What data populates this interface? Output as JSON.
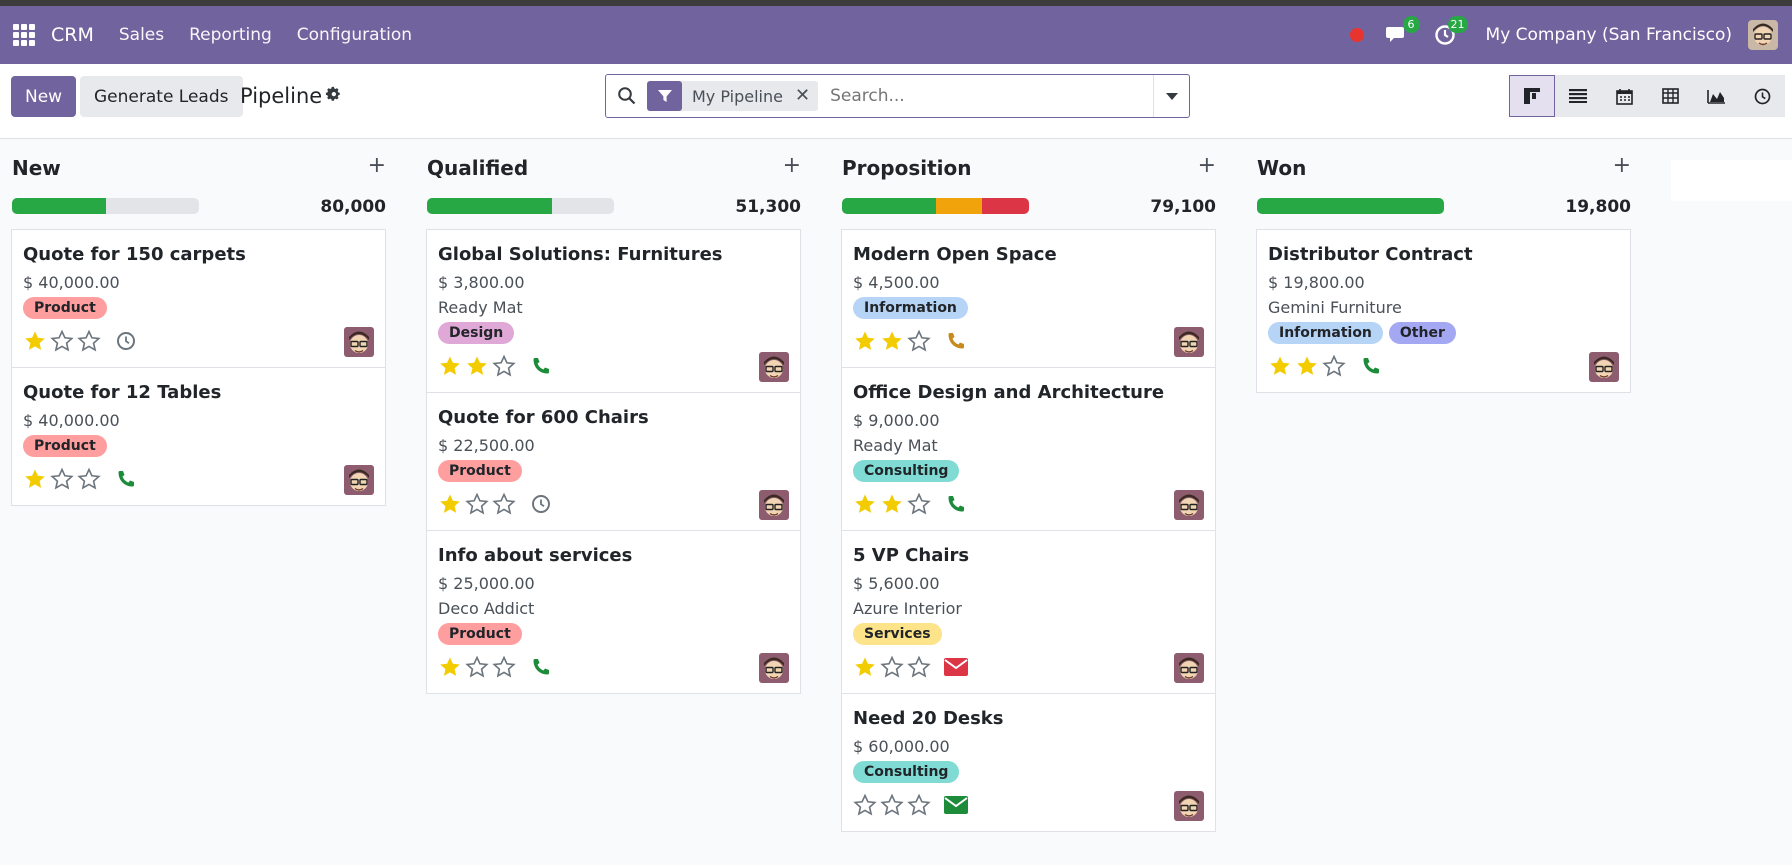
{
  "nav": {
    "brand": "CRM",
    "menu": [
      "Sales",
      "Reporting",
      "Configuration"
    ],
    "messages_count": "6",
    "activities_count": "21",
    "company": "My Company (San Francisco)"
  },
  "control": {
    "new_label": "New",
    "generate_label": "Generate Leads",
    "title": "Pipeline",
    "facet_label": "My Pipeline",
    "search_placeholder": "Search..."
  },
  "colors": {
    "brand": "#71639e",
    "green": "#28a745",
    "orange": "#f0a30a",
    "red": "#dc3545",
    "star": "#f3cc00"
  },
  "columns": [
    {
      "title": "New",
      "total": "80,000",
      "progress": [
        {
          "color": "green",
          "fraction": 0.5
        }
      ],
      "cards": [
        {
          "title": "Quote for 150 carpets",
          "amount": "$ 40,000.00",
          "partner": "",
          "tags": [
            {
              "label": "Product",
              "color": "#ff9e9e"
            }
          ],
          "stars": 1,
          "activity": "clock-icon"
        },
        {
          "title": "Quote for 12 Tables",
          "amount": "$ 40,000.00",
          "partner": "",
          "tags": [
            {
              "label": "Product",
              "color": "#ff9e9e"
            }
          ],
          "stars": 1,
          "activity": "phone-icon"
        }
      ]
    },
    {
      "title": "Qualified",
      "total": "51,300",
      "progress": [
        {
          "color": "green",
          "fraction": 0.67
        }
      ],
      "cards": [
        {
          "title": "Global Solutions: Furnitures",
          "amount": "$ 3,800.00",
          "partner": "Ready Mat",
          "tags": [
            {
              "label": "Design",
              "color": "#e0a8d6"
            }
          ],
          "stars": 2,
          "activity": "phone-icon"
        },
        {
          "title": "Quote for 600 Chairs",
          "amount": "$ 22,500.00",
          "partner": "",
          "tags": [
            {
              "label": "Product",
              "color": "#ff9e9e"
            }
          ],
          "stars": 1,
          "activity": "clock-icon"
        },
        {
          "title": "Info about services",
          "amount": "$ 25,000.00",
          "partner": "Deco Addict",
          "tags": [
            {
              "label": "Product",
              "color": "#ff9e9e"
            }
          ],
          "stars": 1,
          "activity": "phone-icon"
        }
      ]
    },
    {
      "title": "Proposition",
      "total": "79,100",
      "progress": [
        {
          "color": "green",
          "fraction": 0.5
        },
        {
          "color": "orange",
          "fraction": 0.25
        },
        {
          "color": "red",
          "fraction": 0.25
        }
      ],
      "cards": [
        {
          "title": "Modern Open Space",
          "amount": "$ 4,500.00",
          "partner": "",
          "tags": [
            {
              "label": "Information",
              "color": "#b6d4f5"
            }
          ],
          "stars": 2,
          "activity": "phone-orange-icon"
        },
        {
          "title": "Office Design and Architecture",
          "amount": "$ 9,000.00",
          "partner": "Ready Mat",
          "tags": [
            {
              "label": "Consulting",
              "color": "#7fdbd3"
            }
          ],
          "stars": 2,
          "activity": "phone-icon"
        },
        {
          "title": "5 VP Chairs",
          "amount": "$ 5,600.00",
          "partner": "Azure Interior",
          "tags": [
            {
              "label": "Services",
              "color": "#fde38a"
            }
          ],
          "stars": 1,
          "activity": "envelope-red-icon"
        },
        {
          "title": "Need 20 Desks",
          "amount": "$ 60,000.00",
          "partner": "",
          "tags": [
            {
              "label": "Consulting",
              "color": "#7fdbd3"
            }
          ],
          "stars": 0,
          "activity": "envelope-green-icon"
        }
      ]
    },
    {
      "title": "Won",
      "total": "19,800",
      "progress": [
        {
          "color": "green",
          "fraction": 1.0
        }
      ],
      "cards": [
        {
          "title": "Distributor Contract",
          "amount": "$ 19,800.00",
          "partner": "Gemini Furniture",
          "tags": [
            {
              "label": "Information",
              "color": "#b6d4f5"
            },
            {
              "label": "Other",
              "color": "#a4a8f2"
            }
          ],
          "stars": 2,
          "activity": "phone-icon"
        }
      ]
    }
  ]
}
